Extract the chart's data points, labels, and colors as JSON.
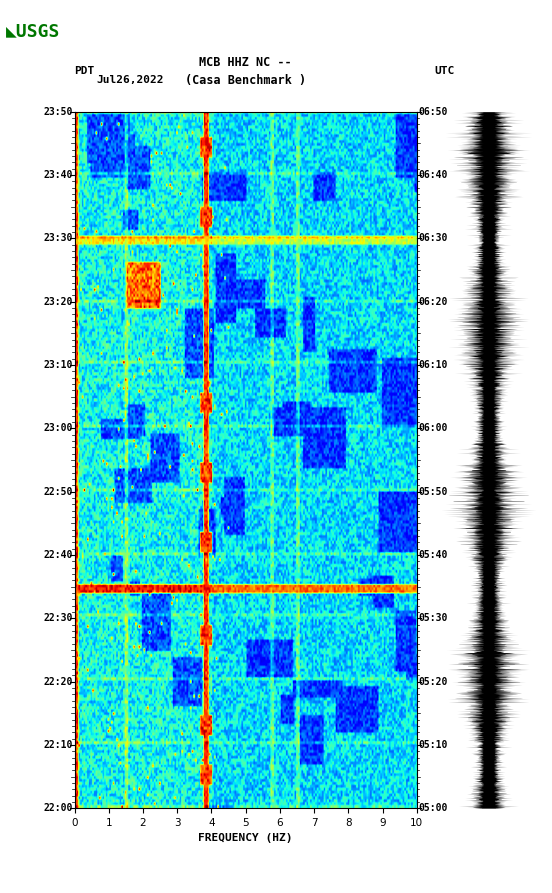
{
  "title_line1": "MCB HHZ NC --",
  "title_line2": "(Casa Benchmark )",
  "date_label": "Jul26,2022",
  "left_timezone": "PDT",
  "right_timezone": "UTC",
  "left_times": [
    "22:00",
    "22:10",
    "22:20",
    "22:30",
    "22:40",
    "22:50",
    "23:00",
    "23:10",
    "23:20",
    "23:30",
    "23:40",
    "23:50"
  ],
  "right_times": [
    "05:00",
    "05:10",
    "05:20",
    "05:30",
    "05:40",
    "05:50",
    "06:00",
    "06:10",
    "06:20",
    "06:30",
    "06:40",
    "06:50"
  ],
  "freq_min": 0,
  "freq_max": 10,
  "freq_ticks": [
    0,
    1,
    2,
    3,
    4,
    5,
    6,
    7,
    8,
    9,
    10
  ],
  "xlabel": "FREQUENCY (HZ)",
  "colormap": "jet",
  "background_color": "#ffffff",
  "spectrogram_rows": 240,
  "spectrogram_cols": 200,
  "noise_seed": 42
}
